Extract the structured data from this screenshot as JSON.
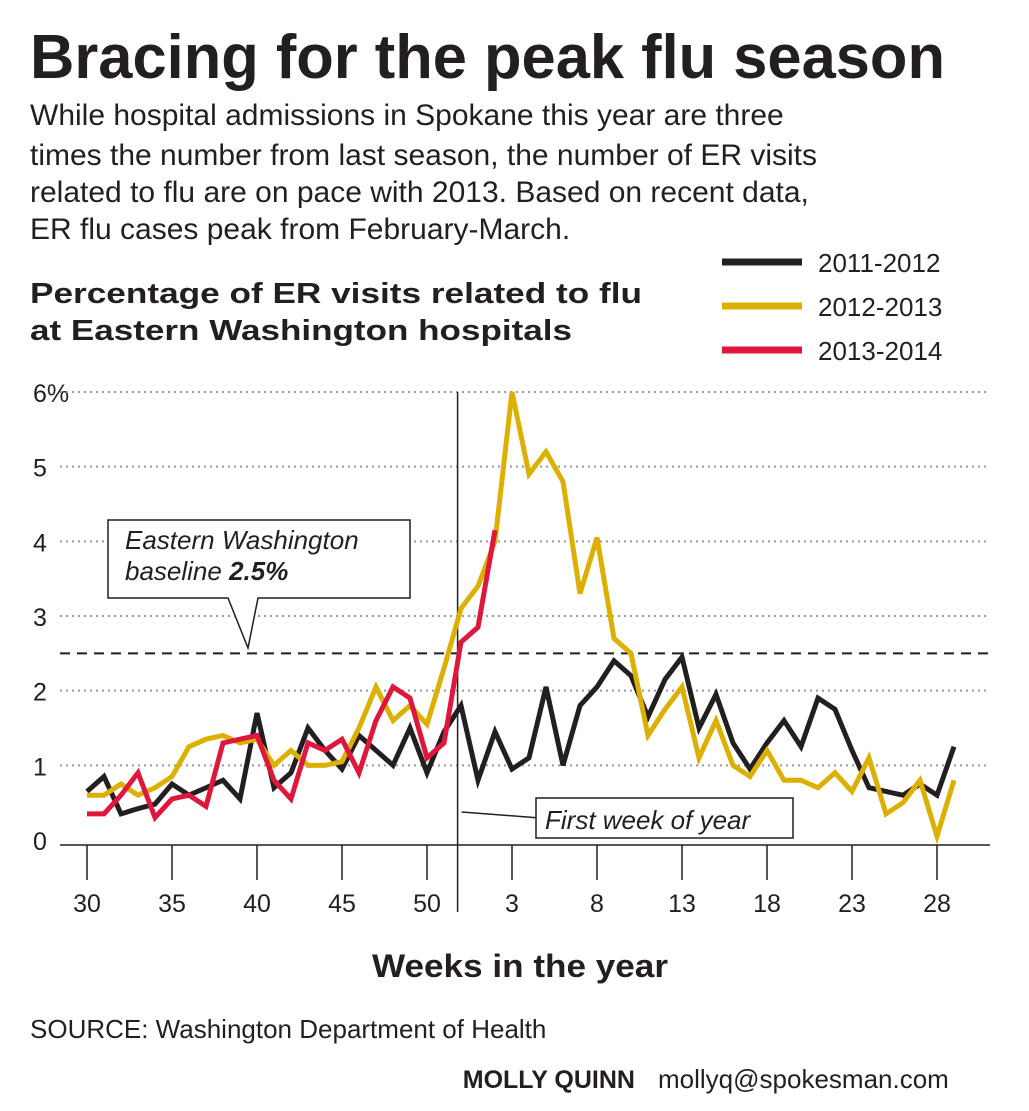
{
  "chart_data": {
    "type": "line",
    "title": "Bracing for the peak flu season",
    "subtitle": [
      "While hospital admissions in Spokane this year are three",
      "times the number from last season, the number of ER visits",
      "related to flu are on pace with 2013. Based on recent data,",
      "ER flu cases peak from February-March."
    ],
    "chart_title": [
      "Percentage of ER visits related to flu",
      "at Eastern Washington hospitals"
    ],
    "xlabel": "Weeks in the year",
    "categories": [
      "30",
      null,
      null,
      null,
      null,
      "35",
      null,
      null,
      null,
      null,
      "40",
      null,
      null,
      null,
      null,
      "45",
      null,
      null,
      null,
      null,
      "50",
      null,
      null,
      null,
      null,
      "3",
      null,
      null,
      null,
      null,
      "8",
      null,
      null,
      null,
      null,
      "13",
      null,
      null,
      null,
      null,
      "18",
      null,
      null,
      null,
      null,
      "23",
      null,
      null,
      null,
      null,
      "28",
      null
    ],
    "ylim": [
      0,
      6
    ],
    "yticks": [
      0,
      1,
      2,
      3,
      4,
      5,
      {
        "value": 6,
        "label": "6%"
      }
    ],
    "grid": true,
    "legend": "upper right",
    "series": [
      {
        "name": "2011-2012",
        "color": "#231f20",
        "values": [
          0.65,
          0.85,
          0.35,
          0.42,
          0.48,
          0.75,
          0.6,
          0.7,
          0.8,
          0.55,
          1.7,
          0.7,
          0.9,
          1.5,
          1.2,
          0.95,
          1.4,
          1.2,
          1.0,
          1.5,
          0.9,
          1.45,
          1.8,
          0.8,
          1.45,
          0.95,
          1.1,
          2.05,
          1.0,
          1.8,
          2.05,
          2.4,
          2.2,
          1.65,
          2.15,
          2.45,
          1.5,
          1.95,
          1.3,
          0.95,
          1.3,
          1.6,
          1.25,
          1.9,
          1.75,
          1.2,
          0.7,
          0.65,
          0.6,
          0.75,
          0.6,
          1.25
        ]
      },
      {
        "name": "2012-2013",
        "color": "#dcb000",
        "values": [
          0.6,
          0.6,
          0.75,
          0.6,
          0.7,
          0.85,
          1.25,
          1.35,
          1.4,
          1.3,
          1.35,
          1.0,
          1.2,
          1.0,
          1.0,
          1.05,
          1.5,
          2.05,
          1.6,
          1.8,
          1.55,
          2.3,
          3.1,
          3.4,
          4.0,
          6.0,
          4.9,
          5.2,
          4.8,
          3.3,
          4.05,
          2.7,
          2.5,
          1.4,
          1.75,
          2.05,
          1.1,
          1.6,
          1.0,
          0.85,
          1.2,
          0.8,
          0.8,
          0.7,
          0.9,
          0.65,
          1.1,
          0.35,
          0.5,
          0.8,
          0.05,
          0.8
        ]
      },
      {
        "name": "2013-2014",
        "color": "#e0173d",
        "values": [
          0.35,
          0.35,
          0.6,
          0.9,
          0.3,
          0.55,
          0.6,
          0.45,
          1.3,
          1.35,
          1.4,
          0.8,
          0.55,
          1.3,
          1.2,
          1.35,
          0.9,
          1.6,
          2.05,
          1.9,
          1.1,
          1.3,
          2.65,
          2.85,
          4.15,
          null,
          null,
          null,
          null,
          null,
          null,
          null,
          null,
          null,
          null,
          null,
          null,
          null,
          null,
          null,
          null,
          null,
          null,
          null,
          null,
          null,
          null,
          null,
          null,
          null,
          null,
          null
        ]
      }
    ],
    "baseline": {
      "value": 2.5,
      "label": "2.5%"
    },
    "baseline_text": [
      "Eastern Washington",
      "baseline"
    ],
    "year_annotation": "First week of year",
    "source": "SOURCE: Washington Department of Health",
    "credit": "MOLLY QUINN",
    "email": "mollyq@spokesman.com"
  }
}
